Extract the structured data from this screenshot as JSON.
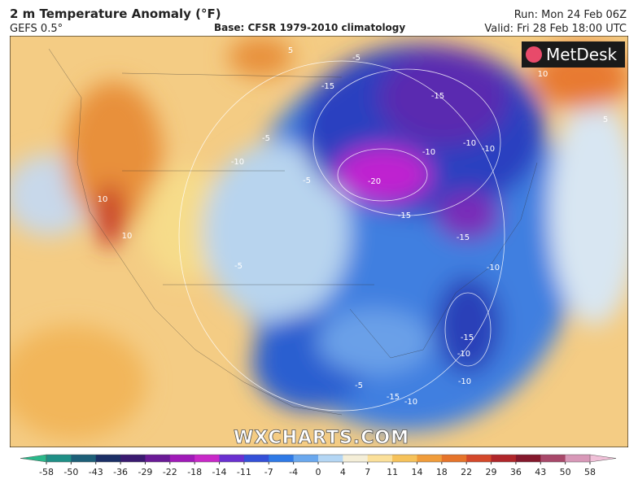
{
  "header": {
    "title": "2 m Temperature Anomaly (°F)",
    "model": "GEFS 0.5°",
    "base": "Base: CFSR 1979-2010 climatology",
    "run": "Run: Mon 24 Feb 06Z",
    "valid": "Valid: Fri 28 Feb 18:00 UTC"
  },
  "logo": "MetDesk",
  "watermark": "WXCHARTS.COM",
  "map": {
    "contour_labels": [
      5,
      -5,
      -15,
      -15,
      -10,
      -10,
      -10,
      -10,
      -5,
      -20,
      -15,
      -15,
      -10,
      10,
      10,
      -15,
      -10,
      -10,
      -15,
      -10,
      -5,
      10,
      5,
      -5,
      -5
    ]
  },
  "colorbar": {
    "ticks": [
      -58,
      -50,
      -43,
      -36,
      -29,
      -22,
      -18,
      -14,
      -11,
      -7,
      -4,
      0,
      4,
      7,
      11,
      14,
      18,
      22,
      29,
      36,
      43,
      50,
      58
    ],
    "colors": [
      "#1f8f86",
      "#1d5f78",
      "#1b2f66",
      "#3a1a70",
      "#6a1a96",
      "#a01ab8",
      "#c828c8",
      "#6a30d0",
      "#3450d8",
      "#2f7ae6",
      "#6aa8ee",
      "#b4d6f4",
      "#f4eed8",
      "#fbe09a",
      "#f6c25a",
      "#f09c3a",
      "#e6742a",
      "#d4482a",
      "#b0262a",
      "#84182c",
      "#a8486a",
      "#d898b8"
    ],
    "low_color": "#2ab88a",
    "high_color": "#f0c0d8"
  }
}
